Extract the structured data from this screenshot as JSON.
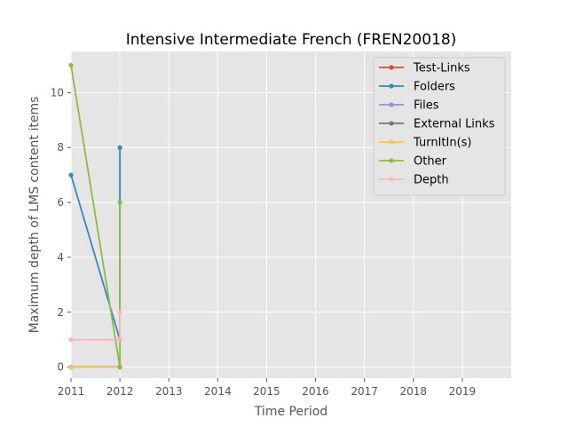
{
  "chart_data": {
    "type": "line",
    "title": "Intensive Intermediate French (FREN20018)",
    "xlabel": "Time Period",
    "ylabel": "Maximum depth of LMS content items",
    "xlim": [
      2011,
      2020
    ],
    "ylim": [
      -0.4,
      11.5
    ],
    "x_ticks": [
      "2011",
      "2012",
      "2013",
      "2014",
      "2015",
      "2016",
      "2017",
      "2018",
      "2019"
    ],
    "y_ticks": [
      "0",
      "2",
      "4",
      "6",
      "8",
      "10"
    ],
    "grid": true,
    "legend_position": "top-right",
    "series": [
      {
        "name": "Test-Links",
        "color": "#E24A33",
        "points": [
          [
            2011,
            0
          ],
          [
            2012,
            0
          ]
        ]
      },
      {
        "name": "Folders",
        "color": "#348ABD",
        "points": [
          [
            2011,
            7
          ],
          [
            2012,
            1
          ],
          [
            2012,
            8
          ]
        ]
      },
      {
        "name": "Files",
        "color": "#988ED5",
        "points": [
          [
            2011,
            0
          ],
          [
            2012,
            0
          ]
        ]
      },
      {
        "name": "External Links",
        "color": "#777777",
        "points": [
          [
            2011,
            0
          ],
          [
            2012,
            0
          ]
        ]
      },
      {
        "name": "TurnItIn(s)",
        "color": "#FBC15E",
        "points": [
          [
            2011,
            0
          ],
          [
            2012,
            0
          ]
        ]
      },
      {
        "name": "Other",
        "color": "#8EBA42",
        "points": [
          [
            2011,
            11
          ],
          [
            2012,
            0
          ],
          [
            2012,
            6
          ]
        ]
      },
      {
        "name": "Depth",
        "color": "#FFB5B8",
        "points": [
          [
            2011,
            1
          ],
          [
            2012,
            1
          ],
          [
            2012,
            2
          ]
        ]
      }
    ]
  }
}
